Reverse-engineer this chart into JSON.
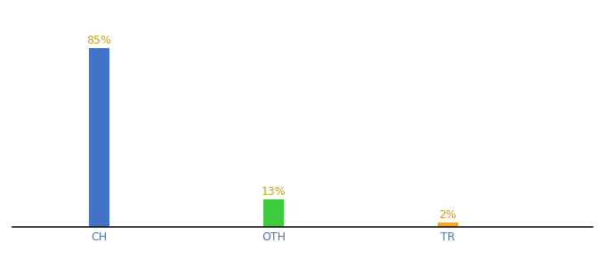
{
  "categories": [
    "CH",
    "OTH",
    "TR"
  ],
  "values": [
    85,
    13,
    2
  ],
  "bar_colors": [
    "#4472c4",
    "#3dcc3d",
    "#f5a623"
  ],
  "labels": [
    "85%",
    "13%",
    "2%"
  ],
  "label_color": "#c8a020",
  "tick_color": "#4472c4",
  "label_fontsize": 9,
  "tick_fontsize": 9,
  "bar_width": 0.35,
  "xlim": [
    -0.5,
    9.5
  ],
  "ylim": [
    0,
    95
  ],
  "x_positions": [
    1,
    4,
    7
  ],
  "background_color": "#ffffff"
}
